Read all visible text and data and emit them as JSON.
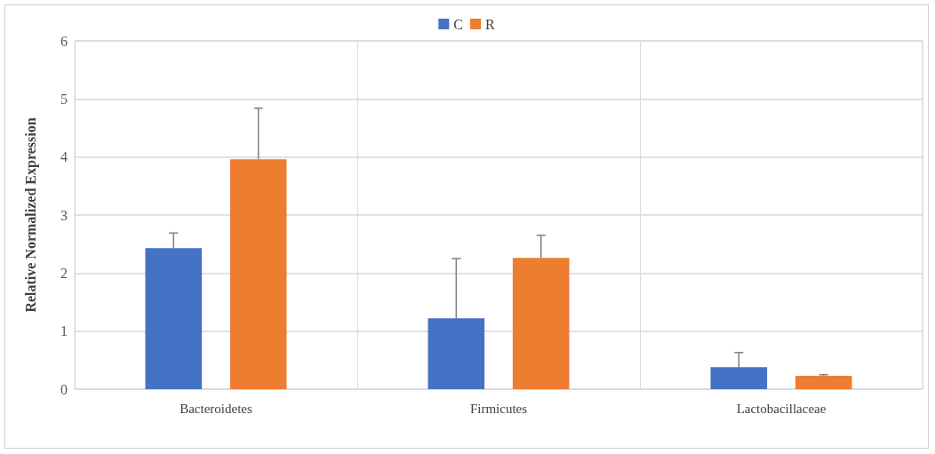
{
  "chart_data": {
    "type": "bar",
    "ylabel": "Relative Normalized Expression",
    "categories": [
      "Bacteroidetes",
      "Firmicutes",
      "Lactobacillaceae"
    ],
    "series": [
      {
        "name": "C",
        "color": "#4472c4",
        "values": [
          2.43,
          1.22,
          0.38
        ],
        "errors": [
          [
            2.43,
            2.69
          ],
          [
            1.22,
            2.25
          ],
          [
            0.38,
            0.63
          ]
        ]
      },
      {
        "name": "R",
        "color": "#ed7d31",
        "values": [
          3.96,
          2.26,
          0.23
        ],
        "errors": [
          [
            3.96,
            4.84
          ],
          [
            2.26,
            2.65
          ],
          [
            0.23,
            0.25
          ]
        ]
      }
    ],
    "ylim": [
      0,
      6
    ],
    "yticks": [
      0,
      1,
      2,
      3,
      4,
      5,
      6
    ],
    "grid": true,
    "legend": "top"
  }
}
